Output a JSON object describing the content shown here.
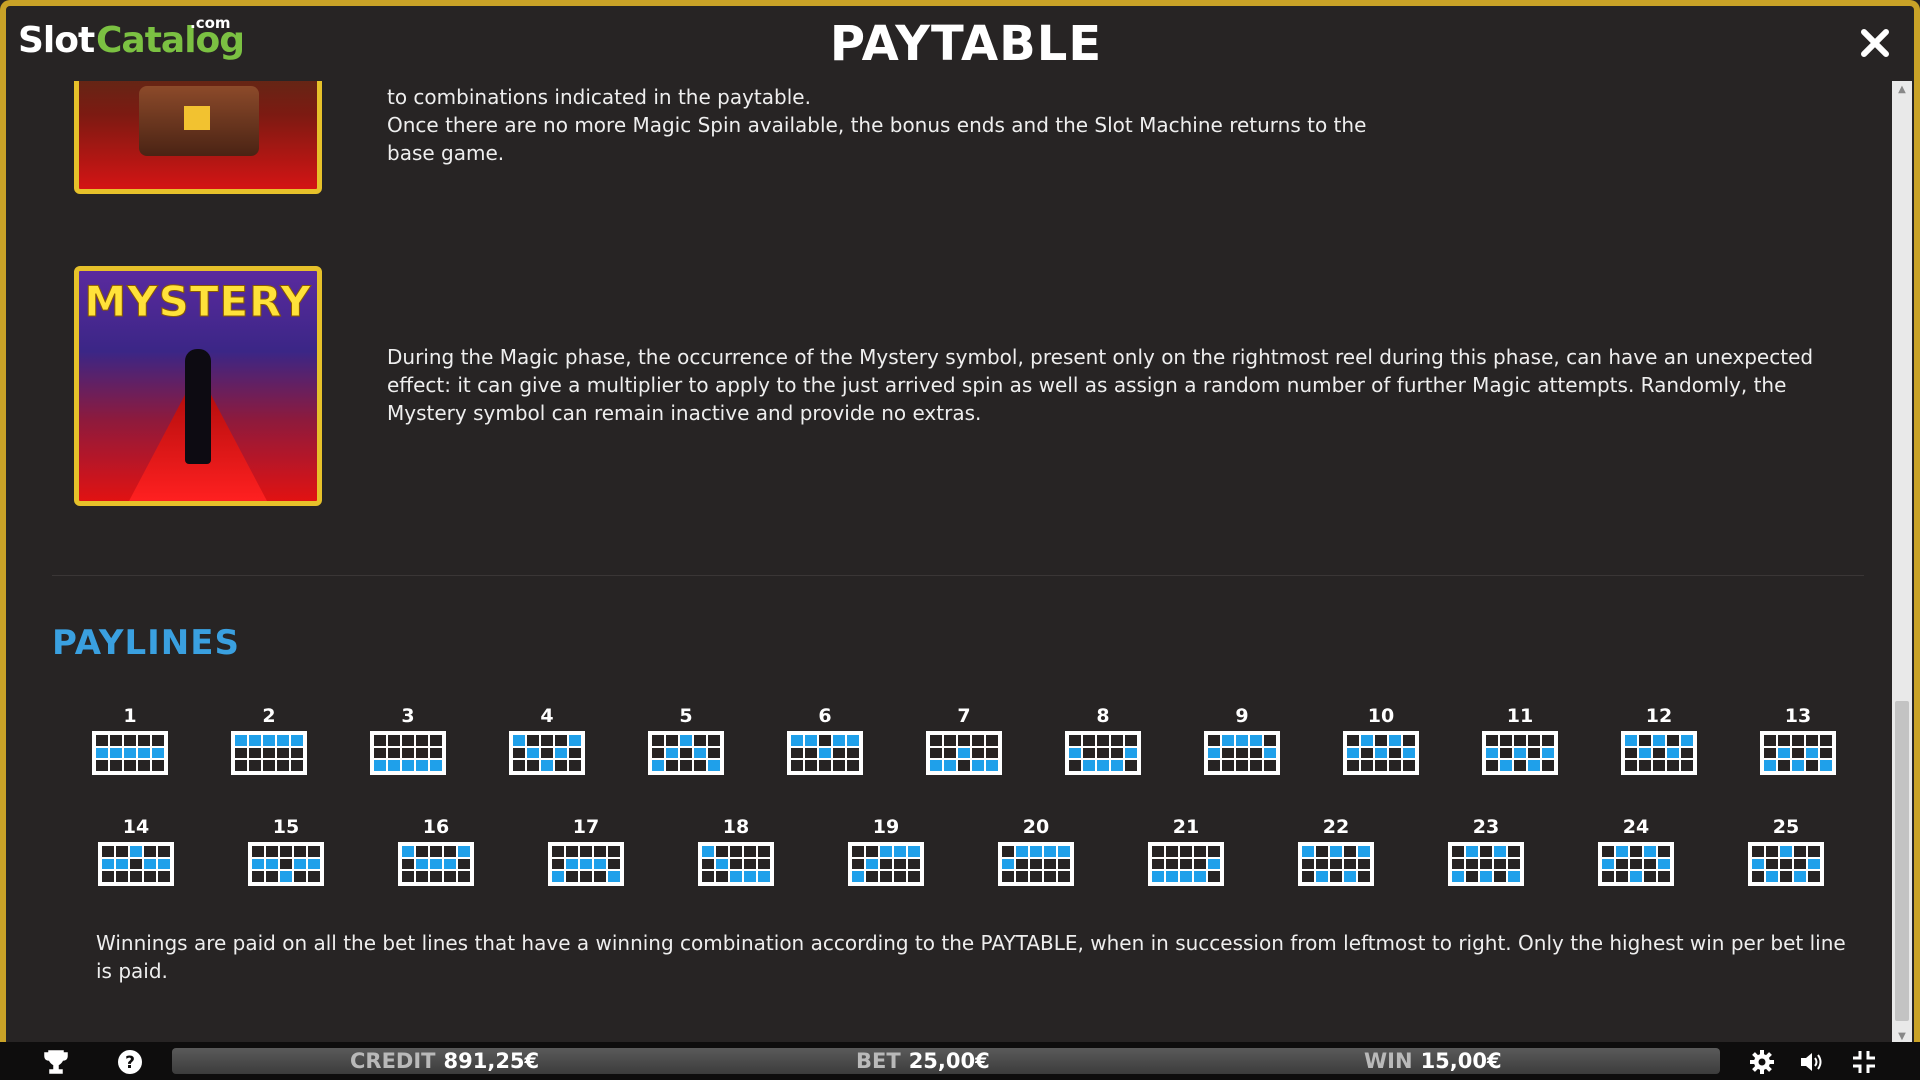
{
  "header": {
    "logo_slot": "Slot",
    "logo_catalog": "Catalog",
    "logo_com": ".com",
    "title": "PAYTABLE"
  },
  "content": {
    "magic_spin_text": "to combinations indicated in the paytable.\nOnce there are no more Magic Spin available, the bonus ends and the Slot Machine returns to the base game.",
    "mystery_symbol_label": "MYSTERY",
    "mystery_text": "During the Magic phase, the occurrence of the Mystery symbol, present only on the rightmost reel during this phase, can have an unexpected effect: it can give a multiplier to apply to the just arrived spin as well as assign a random number of further Magic attempts. Randomly, the Mystery symbol can remain inactive and provide no extras.",
    "paylines_heading": "PAYLINES",
    "winnings_text": "Winnings are paid on all the bet lines that have a winning combination according to the PAYTABLE, when in succession from leftmost to right. Only the highest win per bet line is paid."
  },
  "paylines": [
    {
      "label": "1",
      "rows": [
        1,
        1,
        1,
        1,
        1
      ]
    },
    {
      "label": "2",
      "rows": [
        0,
        0,
        0,
        0,
        0
      ]
    },
    {
      "label": "3",
      "rows": [
        2,
        2,
        2,
        2,
        2
      ]
    },
    {
      "label": "4",
      "rows": [
        0,
        1,
        2,
        1,
        0
      ]
    },
    {
      "label": "5",
      "rows": [
        2,
        1,
        0,
        1,
        2
      ]
    },
    {
      "label": "6",
      "rows": [
        0,
        0,
        1,
        0,
        0
      ]
    },
    {
      "label": "7",
      "rows": [
        2,
        2,
        1,
        2,
        2
      ]
    },
    {
      "label": "8",
      "rows": [
        1,
        2,
        2,
        2,
        1
      ]
    },
    {
      "label": "9",
      "rows": [
        1,
        0,
        0,
        0,
        1
      ]
    },
    {
      "label": "10",
      "rows": [
        1,
        0,
        1,
        0,
        1
      ]
    },
    {
      "label": "11",
      "rows": [
        1,
        2,
        1,
        2,
        1
      ]
    },
    {
      "label": "12",
      "rows": [
        0,
        1,
        0,
        1,
        0
      ]
    },
    {
      "label": "13",
      "rows": [
        2,
        1,
        2,
        1,
        2
      ]
    },
    {
      "label": "14",
      "rows": [
        1,
        1,
        0,
        1,
        1
      ]
    },
    {
      "label": "15",
      "rows": [
        1,
        1,
        2,
        1,
        1
      ]
    },
    {
      "label": "16",
      "rows": [
        0,
        1,
        1,
        1,
        0
      ]
    },
    {
      "label": "17",
      "rows": [
        2,
        1,
        1,
        1,
        2
      ]
    },
    {
      "label": "18",
      "rows": [
        0,
        1,
        2,
        2,
        2
      ]
    },
    {
      "label": "19",
      "rows": [
        2,
        1,
        0,
        0,
        0
      ]
    },
    {
      "label": "20",
      "rows": [
        1,
        0,
        0,
        0,
        0
      ]
    },
    {
      "label": "21",
      "rows": [
        2,
        2,
        2,
        2,
        1
      ]
    },
    {
      "label": "22",
      "rows": [
        0,
        2,
        0,
        2,
        0
      ]
    },
    {
      "label": "23",
      "rows": [
        2,
        0,
        2,
        0,
        2
      ]
    },
    {
      "label": "24",
      "rows": [
        1,
        0,
        2,
        0,
        1
      ]
    },
    {
      "label": "25",
      "rows": [
        1,
        2,
        0,
        2,
        1
      ]
    }
  ],
  "footer": {
    "credit_label": "CREDIT",
    "credit_value": "891,25€",
    "bet_label": "BET",
    "bet_value": "25,00€",
    "win_label": "WIN",
    "win_value": "15,00€"
  },
  "icons": {
    "close": "close-icon",
    "trophy": "trophy-icon",
    "help": "help-icon",
    "settings": "gear-icon",
    "sound": "speaker-icon",
    "fullscreen": "fullscreen-exit-icon"
  },
  "colors": {
    "frame_gold": "#c9a227",
    "payline_blue": "#1fa0ea",
    "heading_blue": "#3aa0e0",
    "logo_green": "#7bc142"
  }
}
